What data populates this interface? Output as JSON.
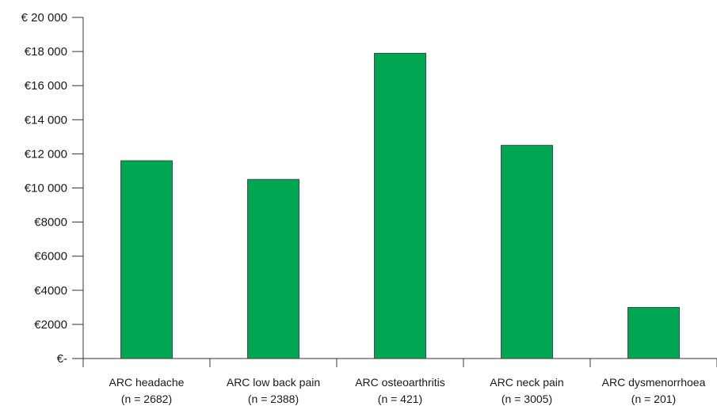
{
  "chart_data": {
    "type": "bar",
    "categories": [
      [
        "ARC headache",
        "(n = 2682)"
      ],
      [
        "ARC low back pain",
        "(n = 2388)"
      ],
      [
        "ARC osteoarthritis",
        "(n = 421)"
      ],
      [
        "ARC neck pain",
        "(n = 3005)"
      ],
      [
        "ARC dysmenorrhoea",
        "(n = 201)"
      ]
    ],
    "values": [
      11600,
      10500,
      17900,
      12500,
      3000
    ],
    "ylim": [
      0,
      20000
    ],
    "yticks": [
      0,
      2000,
      4000,
      6000,
      8000,
      10000,
      12000,
      14000,
      16000,
      18000,
      20000
    ],
    "ytick_labels": [
      "€-",
      "€2000",
      "€4000",
      "€6000",
      "€8000",
      "€10 000",
      "€12 000",
      "€14 000",
      "€16 000",
      "€18 000",
      "€ 20 000"
    ],
    "bar_color": "#00a651",
    "grid": false,
    "title": "",
    "xlabel": "",
    "ylabel": ""
  }
}
